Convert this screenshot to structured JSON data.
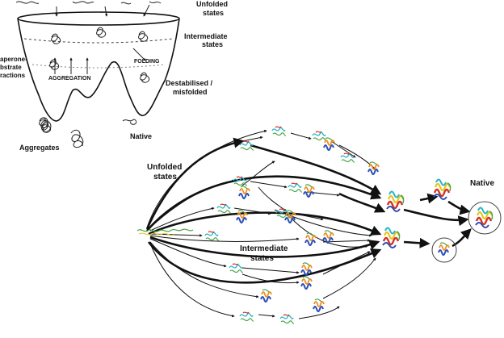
{
  "funnel": {
    "unfolded_line1": "Unfolded",
    "unfolded_line2": "states",
    "intermediate_line1": "Intermediate",
    "intermediate_line2": "states",
    "chaperone_line1": "aperone-",
    "chaperone_line2": "bstrate",
    "chaperone_line3": "ractions",
    "aggregation": "AGGREGATION",
    "folding": "FOLDING",
    "destabilised_line1": "Destabilised /",
    "destabilised_line2": "misfolded",
    "aggregates": "Aggregates",
    "native": "Native"
  },
  "network": {
    "unfolded_line1": "Unfolded",
    "unfolded_line2": "states",
    "intermediate_line1": "Intermediate",
    "intermediate_line2": "states",
    "native": "Native"
  },
  "colors": {
    "ink": "#111111",
    "helix_red": "#d7301f",
    "helix_orange": "#f08c1e",
    "helix_yellow": "#e6c619",
    "helix_green": "#4aa64a",
    "helix_cyan": "#27b3c9",
    "helix_blue": "#2b4fb8"
  }
}
